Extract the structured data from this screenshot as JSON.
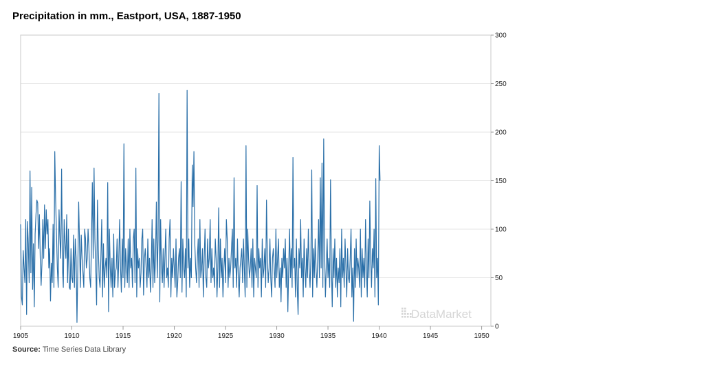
{
  "title": "Precipitation in mm., Eastport, USA, 1887-1950",
  "source": {
    "label": "Source:",
    "text": "Time Series Data Library"
  },
  "watermark": "DataMarket",
  "colors": {
    "line": "#2a6fa8",
    "grid": "#e6e6e6",
    "frame": "#c8c8c8"
  },
  "chart_data": {
    "type": "line",
    "title": "Precipitation in mm., Eastport, USA, 1887-1950",
    "xlabel": "",
    "ylabel": "",
    "xlim": [
      1905,
      1950.9
    ],
    "ylim": [
      0,
      300
    ],
    "grid": true,
    "y_axis_side": "right",
    "x_ticks": [
      1905,
      1910,
      1915,
      1920,
      1925,
      1930,
      1935,
      1940,
      1945,
      1950
    ],
    "y_ticks": [
      0,
      50,
      100,
      150,
      200,
      250,
      300
    ],
    "series": [
      {
        "start_year": 1905,
        "frequency": "monthly",
        "values": [
          105,
          30,
          22,
          78,
          60,
          45,
          110,
          12,
          108,
          85,
          45,
          160,
          55,
          143,
          38,
          85,
          20,
          95,
          115,
          130,
          127,
          80,
          115,
          70,
          42,
          65,
          110,
          70,
          125,
          80,
          120,
          95,
          110,
          60,
          80,
          26,
          65,
          45,
          105,
          40,
          180,
          130,
          95,
          60,
          40,
          120,
          90,
          70,
          162,
          60,
          40,
          110,
          85,
          70,
          115,
          45,
          100,
          40,
          38,
          80,
          50,
          45,
          94,
          40,
          90,
          70,
          4,
          60,
          128,
          85,
          40,
          94,
          70,
          55,
          40,
          100,
          90,
          60,
          70,
          100,
          80,
          50,
          40,
          90,
          148,
          70,
          163,
          90,
          60,
          22,
          130,
          80,
          50,
          40,
          70,
          110,
          30,
          85,
          40,
          60,
          70,
          50,
          148,
          15,
          100,
          60,
          40,
          70,
          30,
          95,
          40,
          55,
          60,
          90,
          40,
          70,
          110,
          60,
          35,
          90,
          50,
          188,
          40,
          80,
          60,
          45,
          90,
          40,
          100,
          60,
          70,
          40,
          90,
          100,
          45,
          163,
          30,
          80,
          60,
          70,
          40,
          55,
          90,
          100,
          32,
          70,
          80,
          60,
          40,
          90,
          50,
          70,
          35,
          60,
          110,
          40,
          90,
          45,
          70,
          128,
          50,
          90,
          240,
          25,
          110,
          60,
          45,
          80,
          40,
          70,
          100,
          50,
          60,
          40,
          90,
          110,
          30,
          70,
          50,
          80,
          60,
          40,
          90,
          30,
          45,
          70,
          80,
          50,
          149,
          35,
          90,
          60,
          50,
          80,
          30,
          243,
          60,
          90,
          40,
          70,
          50,
          166,
          123,
          180,
          85,
          60,
          45,
          70,
          90,
          40,
          110,
          50,
          60,
          80,
          30,
          70,
          100,
          50,
          40,
          90,
          60,
          70,
          110,
          45,
          80,
          50,
          60,
          40,
          90,
          70,
          30,
          60,
          122,
          40,
          90,
          50,
          70,
          30,
          60,
          80,
          45,
          110,
          90,
          40,
          70,
          50,
          60,
          80,
          100,
          40,
          153,
          60,
          70,
          40,
          90,
          50,
          30,
          60,
          70,
          80,
          45,
          90,
          60,
          30,
          186,
          40,
          100,
          70,
          50,
          60,
          80,
          40,
          90,
          30,
          70,
          60,
          50,
          145,
          40,
          80,
          60,
          70,
          30,
          90,
          50,
          60,
          80,
          40,
          130,
          70,
          45,
          60,
          90,
          50,
          30,
          70,
          80,
          60,
          40,
          100,
          50,
          70,
          90,
          40,
          60,
          25,
          70,
          50,
          80,
          60,
          90,
          40,
          70,
          15,
          60,
          100,
          50,
          80,
          40,
          174,
          60,
          70,
          30,
          90,
          40,
          12,
          80,
          60,
          110,
          50,
          70,
          30,
          90,
          60,
          40,
          80,
          50,
          100,
          60,
          40,
          70,
          161,
          30,
          80,
          50,
          90,
          60,
          40,
          70,
          110,
          50,
          153,
          60,
          168,
          40,
          193,
          80,
          30,
          60,
          90,
          50,
          70,
          40,
          151,
          60,
          20,
          80,
          50,
          90,
          40,
          70,
          30,
          60,
          45,
          80,
          20,
          100,
          50,
          70,
          40,
          90,
          60,
          30,
          80,
          50,
          45,
          70,
          100,
          30,
          60,
          5,
          80,
          40,
          90,
          50,
          70,
          60,
          40,
          100,
          30,
          80,
          50,
          70,
          40,
          110,
          60,
          30,
          90,
          50,
          129,
          70,
          40,
          80,
          60,
          100,
          30,
          152,
          50,
          70,
          22,
          186,
          150
        ]
      }
    ]
  }
}
